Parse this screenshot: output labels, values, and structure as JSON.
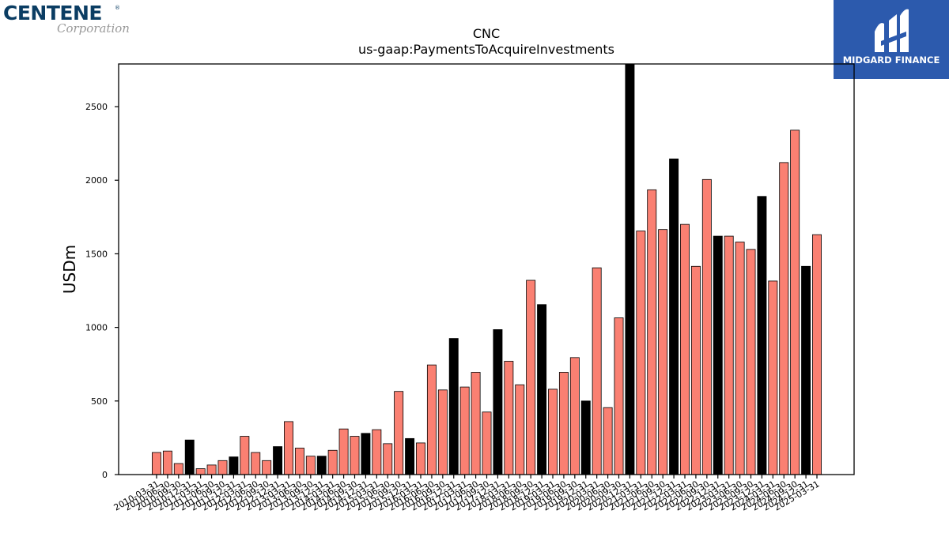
{
  "logo": {
    "name": "CENTENE",
    "reg": "®",
    "corp": "Corporation"
  },
  "brand": {
    "text": "MIDGARD FINANCE",
    "color": "#2c5aad"
  },
  "chart_data": {
    "type": "bar",
    "title": "CNC",
    "subtitle": "us-gaap:PaymentsToAcquireInvestments",
    "xlabel": "",
    "ylabel": "USDm",
    "ylim": [
      0,
      2790
    ],
    "yticks": [
      0,
      500,
      1000,
      1500,
      2000,
      2500
    ],
    "grid": false,
    "colors": {
      "default": "#fa8072",
      "highlight": "#000000"
    },
    "categories": [
      "2010-03-31",
      "2010-06-30",
      "2010-09-30",
      "2010-12-31",
      "2011-03-31",
      "2011-06-30",
      "2011-09-30",
      "2011-12-31",
      "2012-03-31",
      "2012-06-30",
      "2012-09-30",
      "2012-12-31",
      "2013-03-31",
      "2013-06-30",
      "2013-09-30",
      "2013-12-31",
      "2014-03-31",
      "2014-06-30",
      "2014-09-30",
      "2014-12-31",
      "2015-03-31",
      "2015-06-30",
      "2015-09-30",
      "2015-12-31",
      "2016-03-31",
      "2016-06-30",
      "2016-09-30",
      "2016-12-31",
      "2017-03-31",
      "2017-06-30",
      "2017-09-30",
      "2017-12-31",
      "2018-03-31",
      "2018-06-30",
      "2018-09-30",
      "2018-12-31",
      "2019-03-31",
      "2019-06-30",
      "2019-09-30",
      "2019-12-31",
      "2020-03-31",
      "2020-06-30",
      "2020-09-30",
      "2020-12-31",
      "2021-03-31",
      "2021-06-30",
      "2021-09-30",
      "2021-12-31",
      "2022-03-31",
      "2022-06-30",
      "2022-09-30",
      "2022-12-31",
      "2023-03-31",
      "2023-06-30",
      "2023-09-30",
      "2023-12-31",
      "2024-03-31",
      "2024-06-30",
      "2024-09-30",
      "2024-12-31",
      "2025-03-31"
    ],
    "values": [
      150,
      160,
      75,
      235,
      40,
      65,
      95,
      120,
      260,
      150,
      95,
      190,
      360,
      180,
      125,
      125,
      165,
      310,
      260,
      280,
      305,
      210,
      565,
      245,
      215,
      745,
      575,
      925,
      595,
      695,
      425,
      985,
      770,
      610,
      1320,
      1155,
      580,
      695,
      795,
      500,
      1405,
      455,
      1065,
      2790,
      1655,
      1935,
      1665,
      2145,
      1700,
      1415,
      2005,
      1620,
      1620,
      1580,
      1530,
      1890,
      1315,
      2120,
      2340,
      1415,
      1630
    ],
    "highlight": [
      false,
      false,
      false,
      true,
      false,
      false,
      false,
      true,
      false,
      false,
      false,
      true,
      false,
      false,
      false,
      true,
      false,
      false,
      false,
      true,
      false,
      false,
      false,
      true,
      false,
      false,
      false,
      true,
      false,
      false,
      false,
      true,
      false,
      false,
      false,
      true,
      false,
      false,
      false,
      true,
      false,
      false,
      false,
      true,
      false,
      false,
      false,
      true,
      false,
      false,
      false,
      true,
      false,
      false,
      false,
      true,
      false,
      false,
      false,
      true,
      false
    ]
  }
}
